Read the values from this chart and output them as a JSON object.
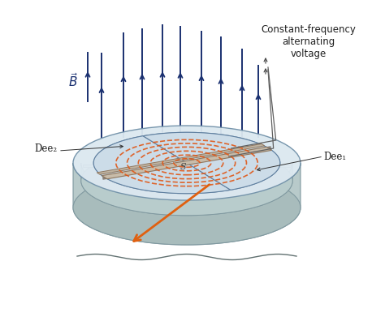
{
  "fig_width": 4.74,
  "fig_height": 3.96,
  "dpi": 100,
  "bg_color": "#ffffff",
  "arrow_B_color": "#1a3070",
  "arrow_particle_color": "#e06010",
  "spiral_color": "#e05818",
  "gap_bar_color": "#b0a898",
  "gap_bar_edge": "#888078",
  "outer_cyl_face": "#c8d8dc",
  "outer_cyl_edge": "#8099a0",
  "inner_platform_face": "#d0dce0",
  "inner_platform_edge": "#8099a0",
  "top_ellipse_face": "#dce8f0",
  "top_ellipse_edge": "#7090a8",
  "dee_face": "#ccdce8",
  "dee_edge": "#6080a0",
  "bottom_cyl_face": "#b8ccd4",
  "bottom_cyl_edge": "#809aaa",
  "label_dee1": "Dee₁",
  "label_dee2": "Dee₂",
  "label_S": "S",
  "label_B": "$\\vec{B}$",
  "label_voltage": "Constant-frequency\nalternating\nvoltage",
  "label_fontsize": 8.5
}
